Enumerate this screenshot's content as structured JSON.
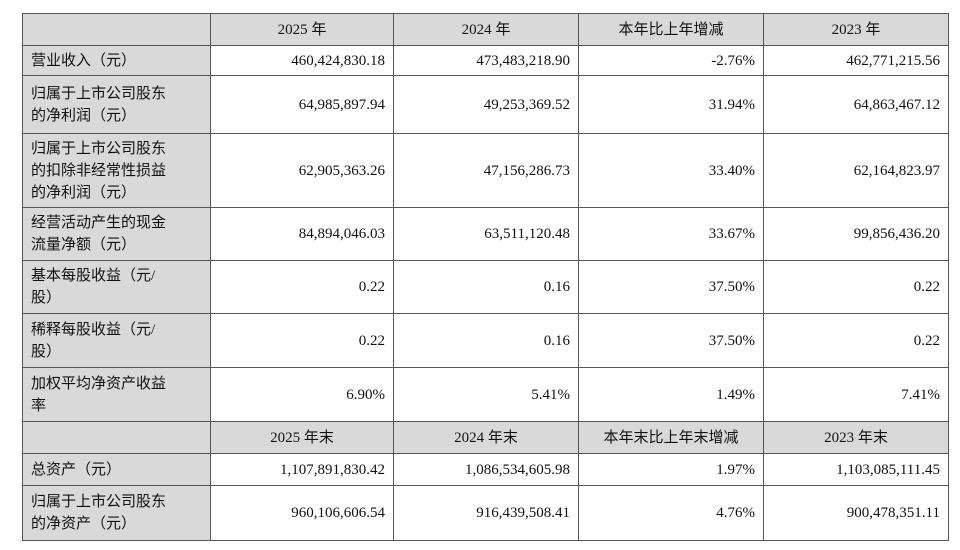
{
  "table": {
    "header": [
      "2025 年",
      "2024 年",
      "本年比上年增减",
      "2023 年"
    ],
    "rows": [
      {
        "label": [
          "营业收入（元）"
        ],
        "values": [
          "460,424,830.18",
          "473,483,218.90",
          "-2.76%",
          "462,771,215.56"
        ]
      },
      {
        "label": [
          "归属于上市公司股东",
          "的净利润（元）"
        ],
        "values": [
          "64,985,897.94",
          "49,253,369.52",
          "31.94%",
          "64,863,467.12"
        ]
      },
      {
        "label": [
          "归属于上市公司股东",
          "的扣除非经常性损益",
          "的净利润（元）"
        ],
        "values": [
          "62,905,363.26",
          "47,156,286.73",
          "33.40%",
          "62,164,823.97"
        ]
      },
      {
        "label": [
          "经营活动产生的现金",
          "流量净额（元）"
        ],
        "values": [
          "84,894,046.03",
          "63,511,120.48",
          "33.67%",
          "99,856,436.20"
        ]
      },
      {
        "label": [
          "基本每股收益（元/",
          "股）"
        ],
        "values": [
          "0.22",
          "0.16",
          "37.50%",
          "0.22"
        ]
      },
      {
        "label": [
          "稀释每股收益（元/",
          "股）"
        ],
        "values": [
          "0.22",
          "0.16",
          "37.50%",
          "0.22"
        ]
      },
      {
        "label": [
          "加权平均净资产收益",
          "率"
        ],
        "values": [
          "6.90%",
          "5.41%",
          "1.49%",
          "7.41%"
        ]
      }
    ],
    "header2": [
      "2025 年末",
      "2024 年末",
      "本年末比上年末增减",
      "2023 年末"
    ],
    "rows2": [
      {
        "label": [
          "总资产（元）"
        ],
        "values": [
          "1,107,891,830.42",
          "1,086,534,605.98",
          "1.97%",
          "1,103,085,111.45"
        ]
      },
      {
        "label": [
          "归属于上市公司股东",
          "的净资产（元）"
        ],
        "values": [
          "960,106,606.54",
          "916,439,508.41",
          "4.76%",
          "900,478,351.11"
        ]
      }
    ]
  }
}
